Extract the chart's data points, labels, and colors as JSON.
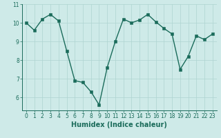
{
  "x": [
    0,
    1,
    2,
    3,
    4,
    5,
    6,
    7,
    8,
    9,
    10,
    11,
    12,
    13,
    14,
    15,
    16,
    17,
    18,
    19,
    20,
    21,
    22,
    23
  ],
  "y": [
    10.0,
    9.6,
    10.2,
    10.45,
    10.1,
    8.5,
    6.9,
    6.8,
    6.3,
    5.6,
    7.6,
    9.0,
    10.2,
    10.0,
    10.15,
    10.45,
    10.05,
    9.7,
    9.4,
    7.5,
    8.2,
    9.3,
    9.1,
    9.4
  ],
  "line_color": "#1a6b5a",
  "marker_color": "#1a6b5a",
  "bg_color": "#ceeae8",
  "grid_color": "#aed4d0",
  "xlabel": "Humidex (Indice chaleur)",
  "xlim": [
    -0.5,
    23.5
  ],
  "ylim": [
    5.3,
    11.0
  ],
  "yticks": [
    6,
    7,
    8,
    9,
    10,
    11
  ],
  "xticks": [
    0,
    1,
    2,
    3,
    4,
    5,
    6,
    7,
    8,
    9,
    10,
    11,
    12,
    13,
    14,
    15,
    16,
    17,
    18,
    19,
    20,
    21,
    22,
    23
  ],
  "tick_fontsize": 5.5,
  "xlabel_fontsize": 7.0,
  "linewidth": 1.0,
  "markersize": 2.2
}
